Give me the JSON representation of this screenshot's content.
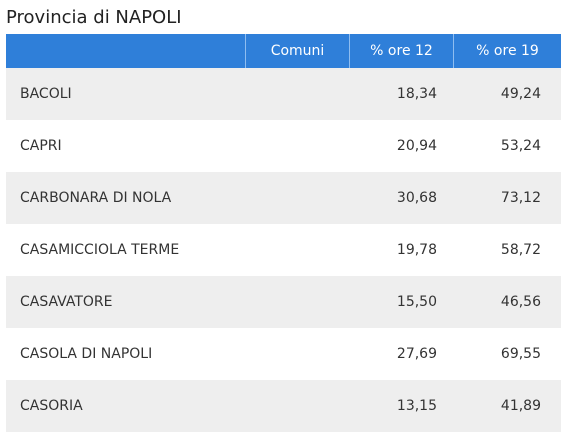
{
  "title": "Provincia di NAPOLI",
  "columns": {
    "name": "",
    "comuni": "Comuni",
    "ore12": "% ore 12",
    "ore19": "% ore 19"
  },
  "rows": [
    {
      "comune": "BACOLI",
      "ore12": "18,34",
      "ore19": "49,24"
    },
    {
      "comune": "CAPRI",
      "ore12": "20,94",
      "ore19": "53,24"
    },
    {
      "comune": "CARBONARA DI NOLA",
      "ore12": "30,68",
      "ore19": "73,12"
    },
    {
      "comune": "CASAMICCIOLA TERME",
      "ore12": "19,78",
      "ore19": "58,72"
    },
    {
      "comune": "CASAVATORE",
      "ore12": "15,50",
      "ore19": "46,56"
    },
    {
      "comune": "CASOLA DI NAPOLI",
      "ore12": "27,69",
      "ore19": "69,55"
    },
    {
      "comune": "CASORIA",
      "ore12": "13,15",
      "ore19": "41,89"
    }
  ],
  "colors": {
    "header_bg": "#2f7fd9",
    "row_alt_bg": "#eeeeee"
  }
}
